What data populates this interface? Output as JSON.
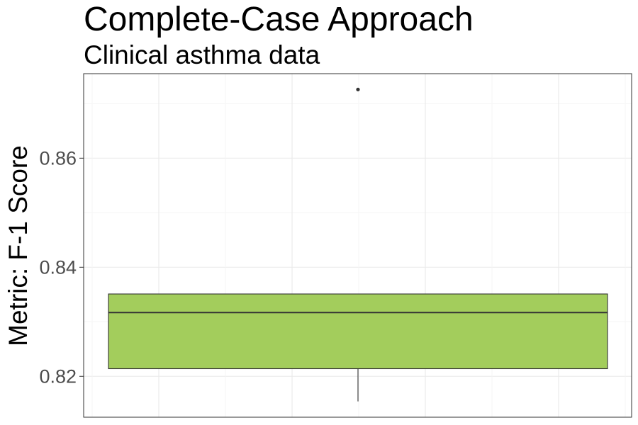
{
  "chart_data": {
    "type": "box",
    "title": "Complete-Case Approach",
    "subtitle": "Clinical asthma data",
    "xlabel": "",
    "ylabel": "Metric: F-1 Score",
    "ylim": [
      0.8125,
      0.8755
    ],
    "yticks": [
      0.82,
      0.84,
      0.86
    ],
    "ytick_labels": [
      "0.82",
      "0.84",
      "0.86"
    ],
    "grid": true,
    "legend": "none",
    "boxes": [
      {
        "lower_whisker": 0.8154,
        "q1": 0.8214,
        "median": 0.8317,
        "q3": 0.8351,
        "upper_whisker": 0.8351,
        "outliers": [
          0.8726
        ]
      }
    ]
  },
  "colors": {
    "box_fill": "#a3cd5c",
    "box_stroke": "#333333",
    "grid_major": "#ebebeb",
    "grid_minor": "#f5f5f5",
    "panel_border": "#333333",
    "tick_label": "#4d4d4d"
  }
}
